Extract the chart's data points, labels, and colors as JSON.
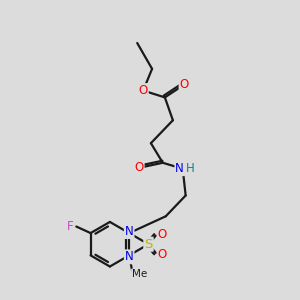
{
  "bg_color": "#dcdcdc",
  "bond_color": "#1a1a1a",
  "bond_width": 1.6,
  "atom_colors": {
    "O": "#ff0000",
    "N": "#0000ee",
    "H": "#008b8b",
    "S": "#b8b800",
    "F": "#cc44cc"
  },
  "font_size": 8.5,
  "fig_size": [
    3.0,
    3.0
  ],
  "dpi": 100,
  "xlim": [
    0,
    10
  ],
  "ylim": [
    0,
    10
  ]
}
